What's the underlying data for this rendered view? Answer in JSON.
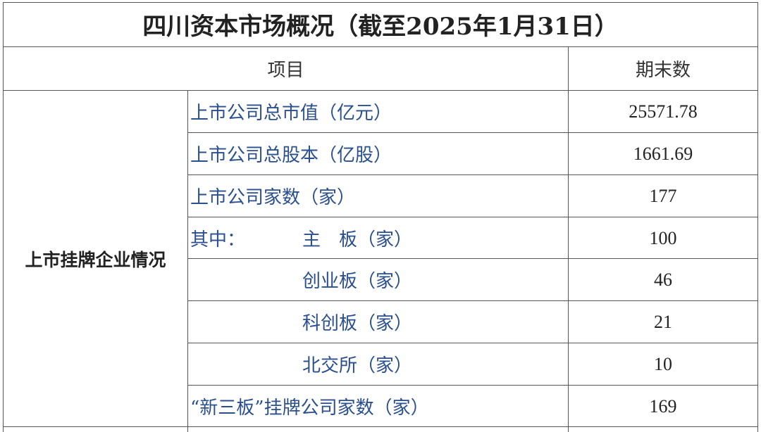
{
  "title": "四川资本市场概况（截至2025年1月31日）",
  "header": {
    "item": "项目",
    "value": "期末数"
  },
  "group_label": "上市挂牌企业情况",
  "rows": [
    {
      "label": "上市公司总市值（亿元）",
      "value": "25571.78"
    },
    {
      "label": "上市公司总股本（亿股）",
      "value": "1661.69"
    },
    {
      "label": "上市公司家数（家）",
      "value": "177"
    },
    {
      "prefix": "其中：",
      "label": "主　板（家）",
      "value": "100"
    },
    {
      "label": "创业板（家）",
      "value": "46"
    },
    {
      "label": "科创板（家）",
      "value": "21"
    },
    {
      "label": "北交所（家）",
      "value": "10"
    },
    {
      "label": "“新三板”挂牌公司家数（家）",
      "value": "169"
    }
  ]
}
